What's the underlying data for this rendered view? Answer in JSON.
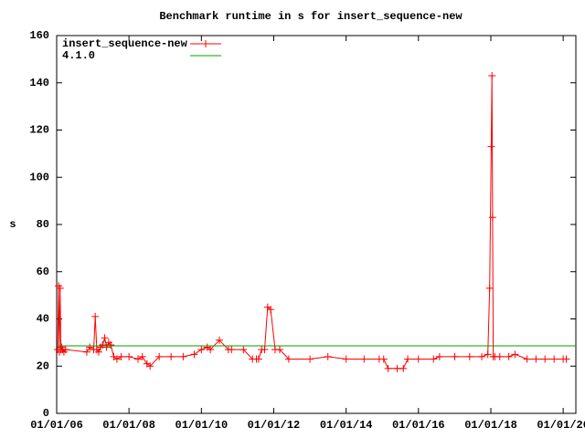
{
  "chart_data": {
    "type": "line",
    "title": "Benchmark runtime in s for insert_sequence-new",
    "y_label": "s",
    "legend": "top-left",
    "xlim": [
      "2006-01-01",
      "2020-05-08"
    ],
    "ylim": [
      0,
      160
    ],
    "yticks": [
      0,
      20,
      40,
      60,
      80,
      100,
      120,
      140,
      160
    ],
    "xticks": [
      {
        "value": "2006-01-01",
        "label": "01/01/06"
      },
      {
        "value": "2008-01-01",
        "label": "01/01/08"
      },
      {
        "value": "2010-01-01",
        "label": "01/01/10"
      },
      {
        "value": "2012-01-01",
        "label": "01/01/12"
      },
      {
        "value": "2014-01-01",
        "label": "01/01/14"
      },
      {
        "value": "2016-01-01",
        "label": "01/01/16"
      },
      {
        "value": "2018-01-01",
        "label": "01/01/18"
      },
      {
        "value": "2020-01-01",
        "label": "01/01/20"
      }
    ],
    "series": [
      {
        "name": "insert_sequence-new",
        "color": "#ff0000",
        "markers": true,
        "x": [
          "2006-01-10",
          "2006-01-20",
          "2006-01-28",
          "2006-02-05",
          "2006-02-12",
          "2006-02-20",
          "2006-03-01",
          "2006-03-15",
          "2006-04-01",
          "2006-11-01",
          "2006-12-01",
          "2007-01-10",
          "2007-01-25",
          "2007-02-10",
          "2007-03-01",
          "2007-03-20",
          "2007-04-10",
          "2007-05-01",
          "2007-05-20",
          "2007-06-10",
          "2007-07-01",
          "2007-08-01",
          "2007-09-01",
          "2007-10-15",
          "2008-01-01",
          "2008-04-01",
          "2008-05-15",
          "2008-07-01",
          "2008-08-01",
          "2008-11-01",
          "2009-03-01",
          "2009-07-01",
          "2009-10-20",
          "2010-01-01",
          "2010-03-01",
          "2010-04-01",
          "2010-07-01",
          "2010-10-01",
          "2010-11-01",
          "2011-03-01",
          "2011-06-01",
          "2011-07-10",
          "2011-08-01",
          "2011-09-01",
          "2011-10-01",
          "2011-11-01",
          "2011-12-01",
          "2012-01-15",
          "2012-03-01",
          "2012-06-01",
          "2013-01-01",
          "2013-07-01",
          "2014-01-01",
          "2014-07-01",
          "2014-12-01",
          "2015-01-15",
          "2015-03-01",
          "2015-06-01",
          "2015-08-01",
          "2015-09-15",
          "2016-01-01",
          "2016-06-01",
          "2016-08-01",
          "2017-01-01",
          "2017-06-01",
          "2017-10-01",
          "2017-12-01",
          "2017-12-20",
          "2018-01-05",
          "2018-01-12",
          "2018-01-18",
          "2018-01-25",
          "2018-02-10",
          "2018-04-01",
          "2018-07-01",
          "2018-09-01",
          "2019-01-01",
          "2019-04-01",
          "2019-07-01",
          "2019-10-01",
          "2020-01-01",
          "2020-02-01"
        ],
        "values": [
          27,
          54,
          26,
          53,
          27,
          28,
          27,
          26,
          27,
          26,
          28,
          27,
          41,
          27,
          26,
          28,
          29,
          32,
          28,
          30,
          29,
          24,
          23,
          24,
          24,
          23,
          24,
          21,
          20,
          24,
          24,
          24,
          25,
          27,
          28,
          27,
          31,
          27,
          27,
          27,
          23,
          23,
          23,
          27,
          27,
          45,
          44,
          27,
          27,
          23,
          23,
          24,
          23,
          23,
          23,
          23,
          19,
          19,
          19,
          23,
          23,
          23,
          24,
          24,
          24,
          24,
          25,
          53,
          113,
          143,
          83,
          24,
          24,
          24,
          24,
          25,
          23,
          23,
          23,
          23,
          23,
          23
        ]
      },
      {
        "name": "4.1.0",
        "color": "#00a000",
        "markers": false,
        "x": [
          "2006-01-01",
          "2020-05-08"
        ],
        "values": [
          28.6,
          28.6
        ]
      }
    ]
  }
}
